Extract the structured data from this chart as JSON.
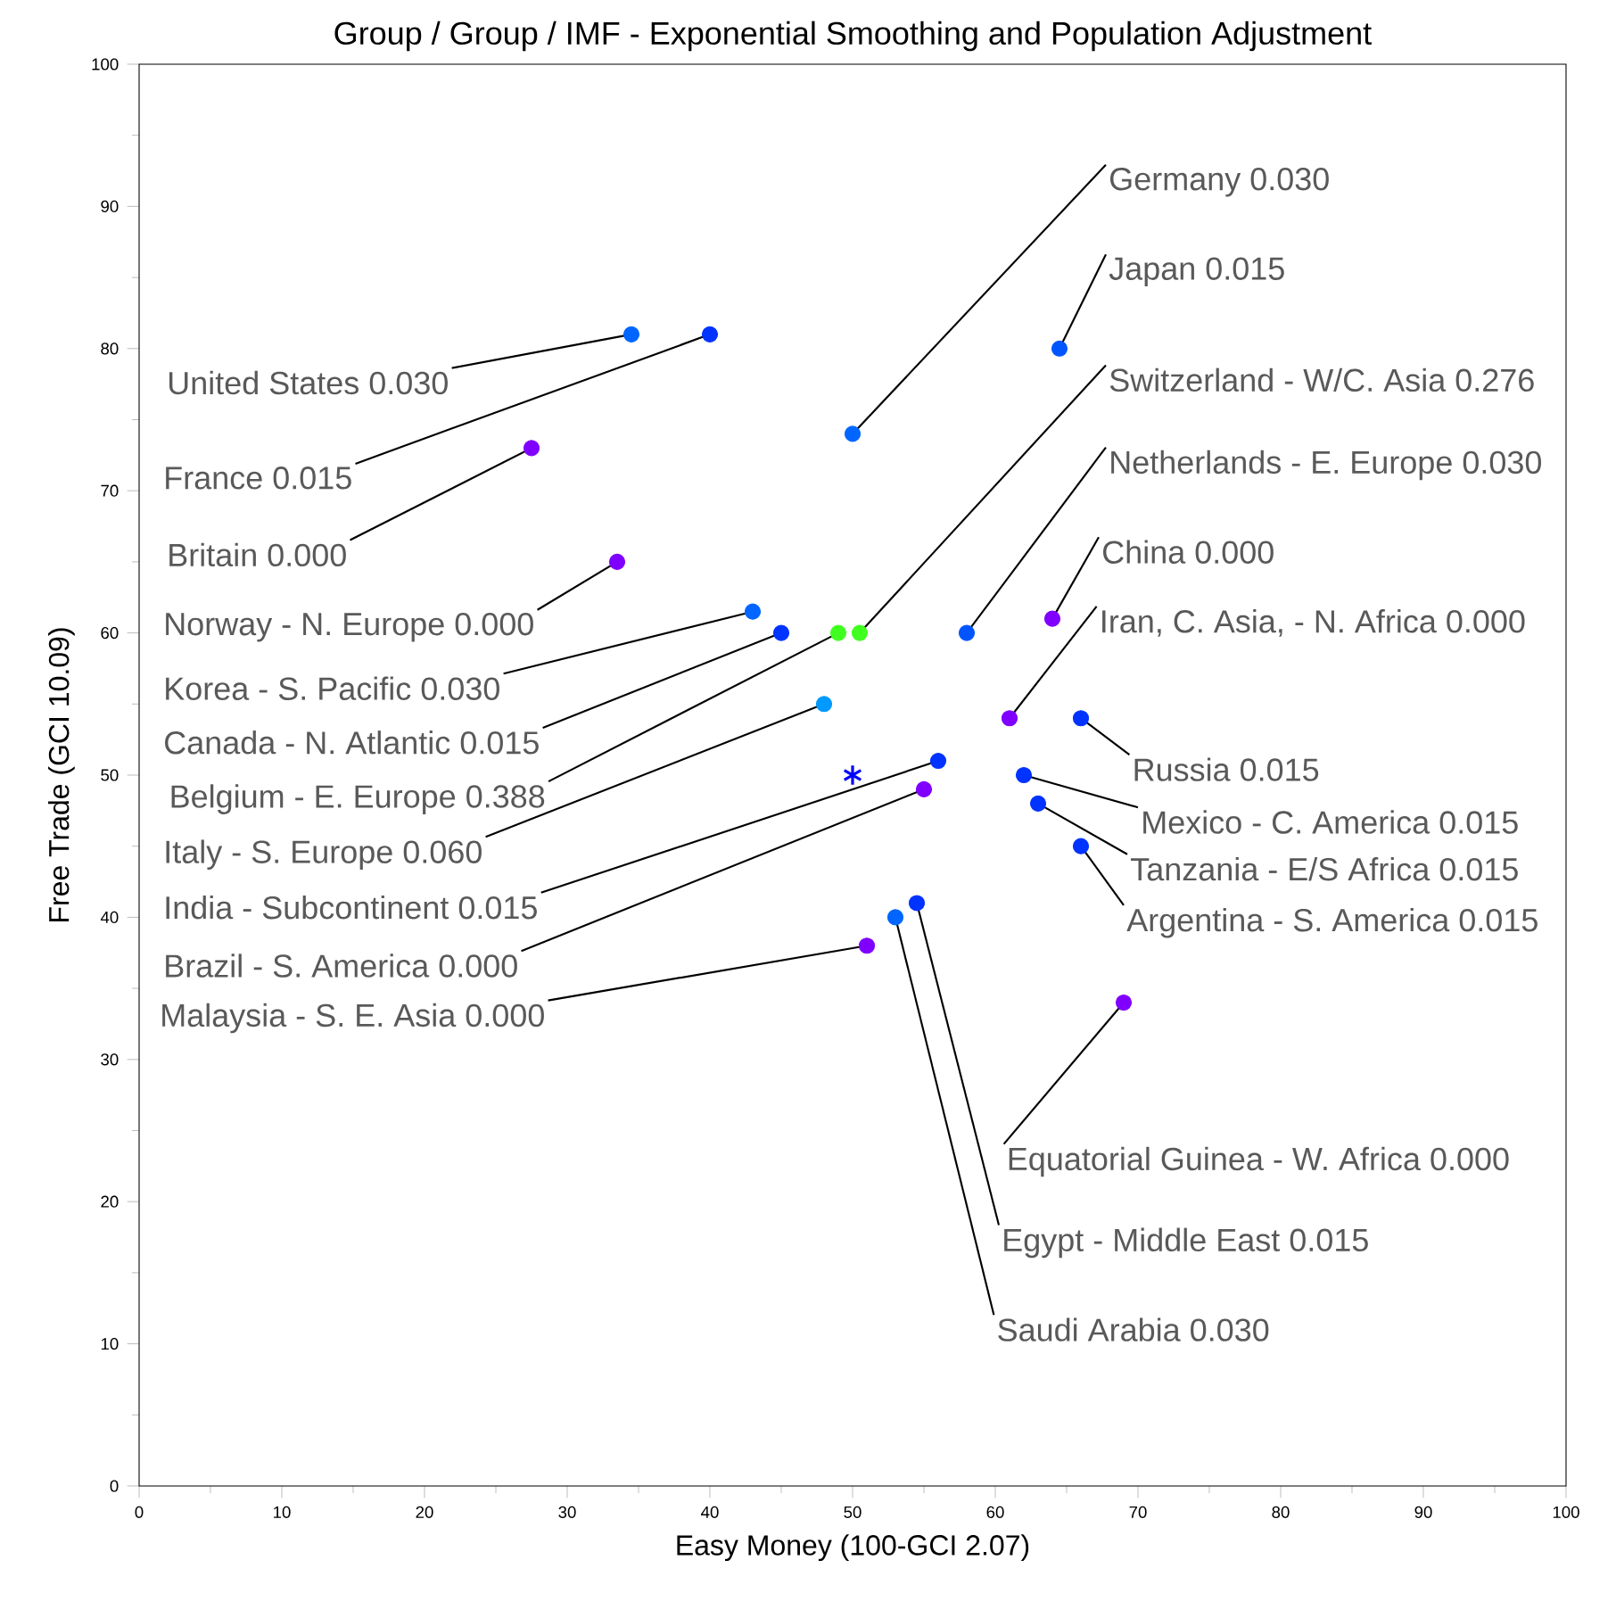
{
  "chart_data": {
    "type": "scatter",
    "title": "Group / Group / IMF - Exponential Smoothing and Population Adjustment",
    "xlabel": "Easy Money (100-GCI  2.07)",
    "ylabel": "Free Trade (GCI 10.09)",
    "xlim": [
      0,
      100
    ],
    "ylim": [
      0,
      100
    ],
    "xticks": [
      0,
      10,
      20,
      30,
      40,
      50,
      60,
      70,
      80,
      90,
      100
    ],
    "yticks": [
      0,
      10,
      20,
      30,
      40,
      50,
      60,
      70,
      80,
      90,
      100
    ],
    "grid": false,
    "series": [
      {
        "marker": "circle",
        "x": [
          34.5,
          40,
          27.5,
          50,
          64.5,
          50.5,
          58,
          64,
          61,
          33.5,
          43,
          45,
          49,
          48,
          56,
          55,
          51,
          66,
          62,
          63,
          66,
          69,
          54.5,
          53
        ],
        "values": [
          81,
          81,
          73,
          74,
          80,
          60,
          60,
          61,
          54,
          65,
          61.5,
          60,
          60,
          55,
          51,
          49,
          38,
          54,
          50,
          48,
          45,
          34,
          41,
          40
        ],
        "colors": [
          "#0066ff",
          "#0033ff",
          "#8000ff",
          "#0066ff",
          "#0055ff",
          "#40ff20",
          "#0055ff",
          "#8000ff",
          "#8000ff",
          "#8000ff",
          "#0066ff",
          "#0033ff",
          "#40ff20",
          "#0099ff",
          "#0033ff",
          "#8000ff",
          "#8000ff",
          "#0033ff",
          "#0033ff",
          "#0033ff",
          "#0033ff",
          "#8000ff",
          "#0033ff",
          "#0066ff"
        ]
      },
      {
        "marker": "cross",
        "x": [
          50
        ],
        "values": [
          50
        ],
        "color": "#0000ff"
      }
    ],
    "annotations": [
      {
        "text": "United States 0.030",
        "x": 34.5,
        "y": 81
      },
      {
        "text": "France 0.015",
        "x": 40,
        "y": 81
      },
      {
        "text": "Britain 0.000",
        "x": 27.5,
        "y": 73
      },
      {
        "text": "Germany 0.030",
        "x": 50,
        "y": 74
      },
      {
        "text": "Japan 0.015",
        "x": 64.5,
        "y": 80
      },
      {
        "text": "Switzerland - W/C. Asia 0.276",
        "x": 50.5,
        "y": 60
      },
      {
        "text": "Netherlands - E. Europe 0.030",
        "x": 58,
        "y": 60
      },
      {
        "text": "China 0.000",
        "x": 64,
        "y": 61
      },
      {
        "text": "Iran, C. Asia, - N. Africa 0.000",
        "x": 61,
        "y": 54
      },
      {
        "text": "Norway - N. Europe 0.000",
        "x": 33.5,
        "y": 65
      },
      {
        "text": "Korea - S. Pacific 0.030",
        "x": 43,
        "y": 61.5
      },
      {
        "text": "Canada - N. Atlantic 0.015",
        "x": 45,
        "y": 60
      },
      {
        "text": "Belgium - E. Europe 0.388",
        "x": 49,
        "y": 60
      },
      {
        "text": "Italy - S. Europe 0.060",
        "x": 48,
        "y": 55
      },
      {
        "text": "India - Subcontinent 0.015",
        "x": 56,
        "y": 51
      },
      {
        "text": "Brazil - S. America 0.000",
        "x": 55,
        "y": 49
      },
      {
        "text": "Malaysia - S. E. Asia 0.000",
        "x": 51,
        "y": 38
      },
      {
        "text": "Russia 0.015",
        "x": 66,
        "y": 54
      },
      {
        "text": "Mexico - C. America 0.015",
        "x": 62,
        "y": 50
      },
      {
        "text": "Tanzania - E/S Africa 0.015",
        "x": 63,
        "y": 48
      },
      {
        "text": "Argentina - S. America 0.015",
        "x": 66,
        "y": 45
      },
      {
        "text": "Equatorial Guinea - W. Africa 0.000",
        "x": 69,
        "y": 34
      },
      {
        "text": "Egypt - Middle East 0.015",
        "x": 54.5,
        "y": 41
      },
      {
        "text": "Saudi Arabia 0.030",
        "x": 53,
        "y": 40
      }
    ]
  }
}
